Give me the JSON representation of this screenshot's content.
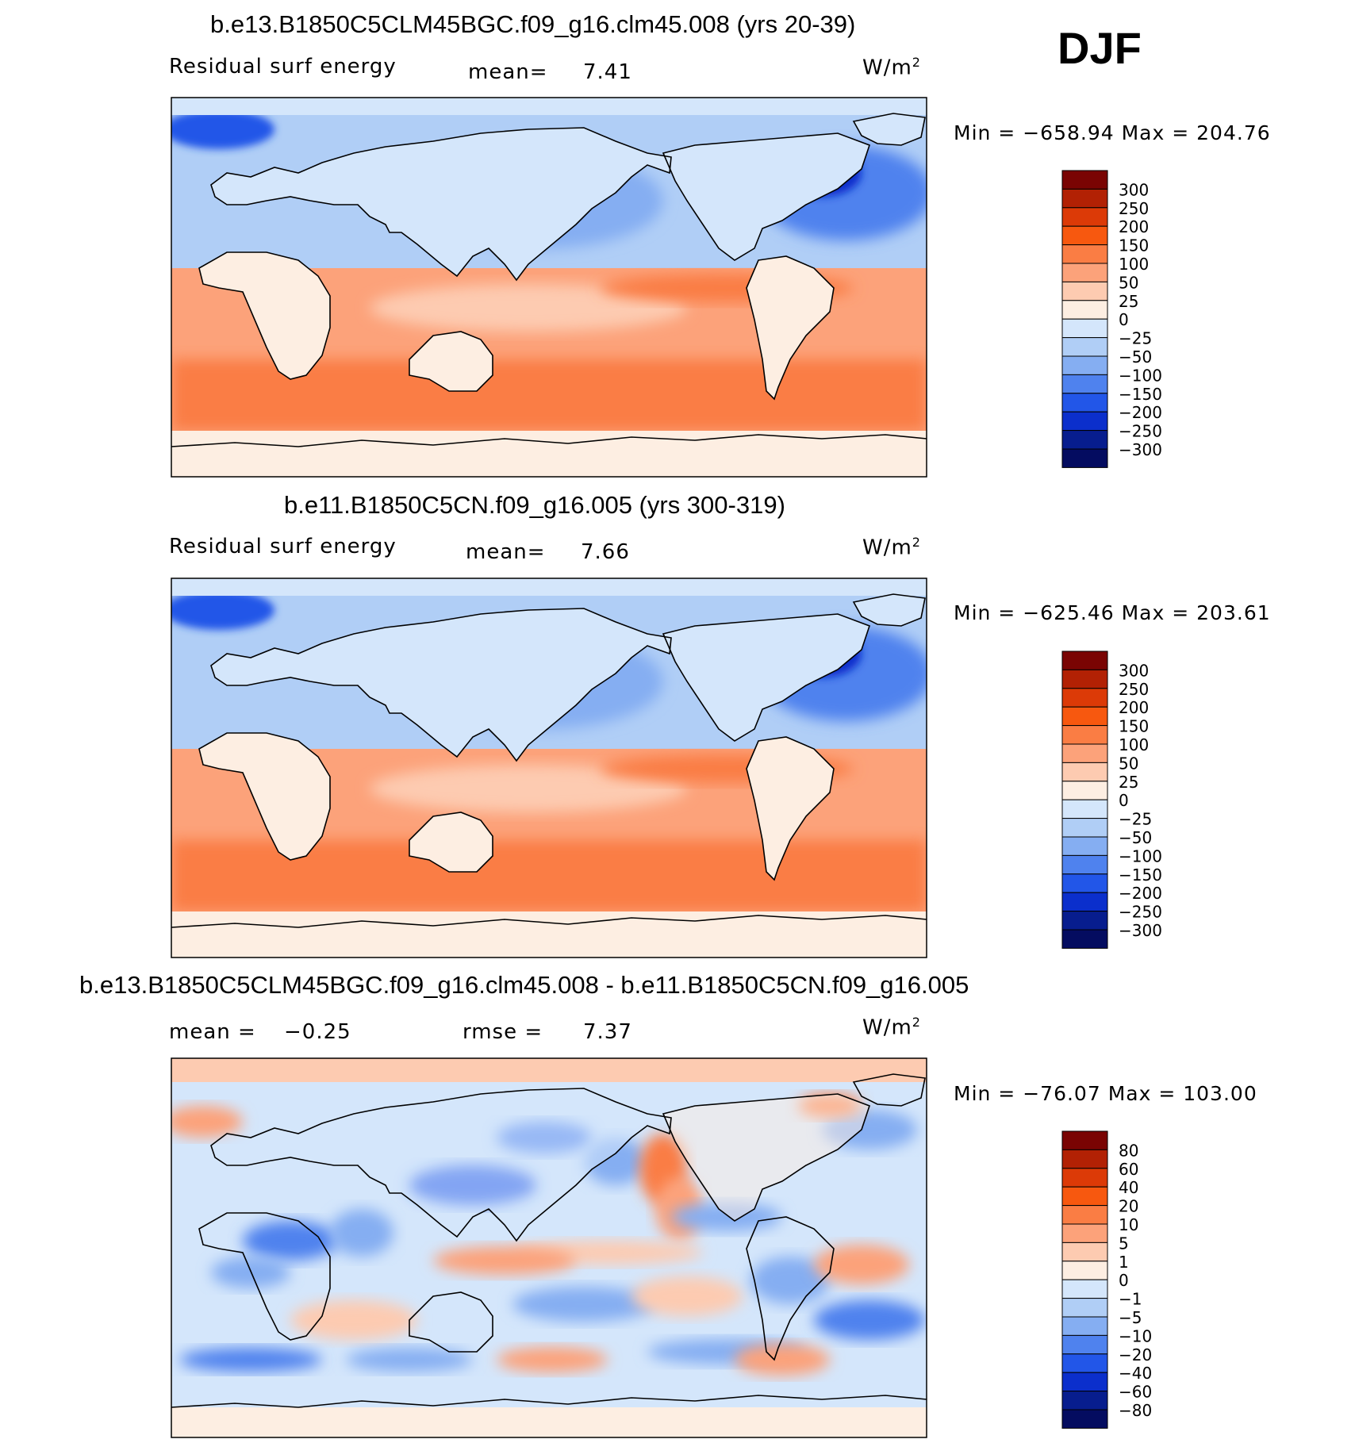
{
  "season": "DJF",
  "panels": [
    {
      "title": "b.e13.B1850C5CLM45BGC.f09_g16.clm45.008 (yrs 20-39)",
      "left_label": "Residual surf energy",
      "stat1_label": "mean=",
      "stat1_value": "7.41",
      "stat2_label": "",
      "stat2_value": "",
      "units_base": "W/m",
      "units_exp": "2",
      "min_label": "Min =",
      "min_value": "−658.94",
      "max_label": "Max =",
      "max_value": "204.76",
      "colorbar": {
        "labels": [
          "300",
          "250",
          "200",
          "150",
          "100",
          "50",
          "25",
          "0",
          "−25",
          "−50",
          "−100",
          "−150",
          "−200",
          "−250",
          "−300"
        ],
        "colors": [
          "#7a0403",
          "#b22104",
          "#dc3a07",
          "#f7580f",
          "#fa7d44",
          "#fca27a",
          "#fdcbb1",
          "#fdeee2",
          "#d4e6fb",
          "#b0cef6",
          "#85aef2",
          "#4f82ee",
          "#2256e8",
          "#0b2fcc",
          "#071d8e",
          "#040c60"
        ]
      },
      "chart_data": {
        "type": "heatmap",
        "title": "b.e13.B1850C5CLM45BGC.f09_g16.clm45.008 (yrs 20-39)",
        "variable": "Residual surf energy",
        "units": "W/m2",
        "mean": 7.41,
        "min": -658.94,
        "max": 204.76,
        "contour_levels": [
          -300,
          -250,
          -200,
          -150,
          -100,
          -50,
          -25,
          0,
          25,
          50,
          100,
          150,
          200,
          250,
          300
        ]
      }
    },
    {
      "title": "b.e11.B1850C5CN.f09_g16.005 (yrs 300-319)",
      "left_label": "Residual surf energy",
      "stat1_label": "mean=",
      "stat1_value": "7.66",
      "stat2_label": "",
      "stat2_value": "",
      "units_base": "W/m",
      "units_exp": "2",
      "min_label": "Min =",
      "min_value": "−625.46",
      "max_label": "Max =",
      "max_value": "203.61",
      "colorbar": {
        "labels": [
          "300",
          "250",
          "200",
          "150",
          "100",
          "50",
          "25",
          "0",
          "−25",
          "−50",
          "−100",
          "−150",
          "−200",
          "−250",
          "−300"
        ],
        "colors": [
          "#7a0403",
          "#b22104",
          "#dc3a07",
          "#f7580f",
          "#fa7d44",
          "#fca27a",
          "#fdcbb1",
          "#fdeee2",
          "#d4e6fb",
          "#b0cef6",
          "#85aef2",
          "#4f82ee",
          "#2256e8",
          "#0b2fcc",
          "#071d8e",
          "#040c60"
        ]
      },
      "chart_data": {
        "type": "heatmap",
        "title": "b.e11.B1850C5CN.f09_g16.005 (yrs 300-319)",
        "variable": "Residual surf energy",
        "units": "W/m2",
        "mean": 7.66,
        "min": -625.46,
        "max": 203.61,
        "contour_levels": [
          -300,
          -250,
          -200,
          -150,
          -100,
          -50,
          -25,
          0,
          25,
          50,
          100,
          150,
          200,
          250,
          300
        ]
      }
    },
    {
      "title": "b.e13.B1850C5CLM45BGC.f09_g16.clm45.008 - b.e11.B1850C5CN.f09_g16.005",
      "left_label": "",
      "stat1_label": "mean =",
      "stat1_value": "−0.25",
      "stat2_label": "rmse =",
      "stat2_value": "7.37",
      "units_base": "W/m",
      "units_exp": "2",
      "min_label": "Min =",
      "min_value": "−76.07",
      "max_label": "Max =",
      "max_value": "103.00",
      "colorbar": {
        "labels": [
          "80",
          "60",
          "40",
          "20",
          "10",
          "5",
          "1",
          "0",
          "−1",
          "−5",
          "−10",
          "−20",
          "−40",
          "−60",
          "−80"
        ],
        "colors": [
          "#7a0403",
          "#b22104",
          "#dc3a07",
          "#f7580f",
          "#fa7d44",
          "#fca27a",
          "#fdcbb1",
          "#fdeee2",
          "#d4e6fb",
          "#b0cef6",
          "#85aef2",
          "#4f82ee",
          "#2256e8",
          "#0b2fcc",
          "#071d8e",
          "#040c60"
        ]
      },
      "chart_data": {
        "type": "heatmap",
        "title": "b.e13.B1850C5CLM45BGC.f09_g16.clm45.008 - b.e11.B1850C5CN.f09_g16.005",
        "units": "W/m2",
        "mean": -0.25,
        "rmse": 7.37,
        "min": -76.07,
        "max": 103.0,
        "contour_levels": [
          -80,
          -60,
          -40,
          -20,
          -10,
          -5,
          -1,
          0,
          1,
          5,
          10,
          20,
          40,
          60,
          80
        ]
      }
    }
  ]
}
